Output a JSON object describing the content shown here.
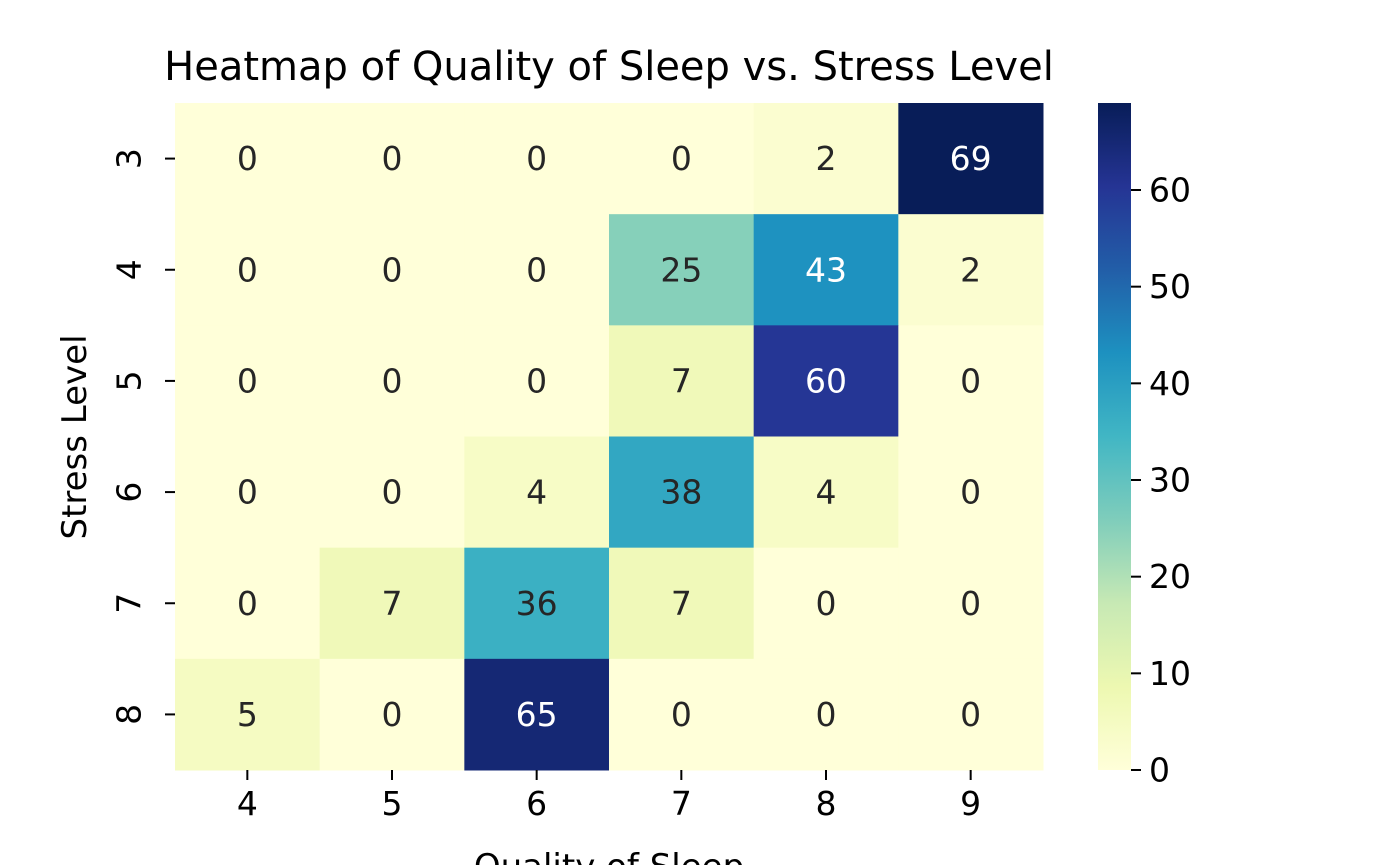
{
  "chart_data": {
    "type": "heatmap",
    "title": "Heatmap of Quality of Sleep vs. Stress Level",
    "xlabel": "Quality of Sleep",
    "ylabel": "Stress Level",
    "x_categories": [
      "4",
      "5",
      "6",
      "7",
      "8",
      "9"
    ],
    "y_categories": [
      "3",
      "4",
      "5",
      "6",
      "7",
      "8"
    ],
    "values": [
      [
        0,
        0,
        0,
        0,
        2,
        69
      ],
      [
        0,
        0,
        0,
        25,
        43,
        2
      ],
      [
        0,
        0,
        0,
        7,
        60,
        0
      ],
      [
        0,
        0,
        4,
        38,
        4,
        0
      ],
      [
        0,
        7,
        36,
        7,
        0,
        0
      ],
      [
        5,
        0,
        65,
        0,
        0,
        0
      ]
    ],
    "colormap": "YlGnBu",
    "colorbar": {
      "min": 0,
      "max": 69,
      "ticks": [
        "0",
        "10",
        "20",
        "30",
        "40",
        "50",
        "60"
      ]
    },
    "annotations": true,
    "grid": false
  }
}
